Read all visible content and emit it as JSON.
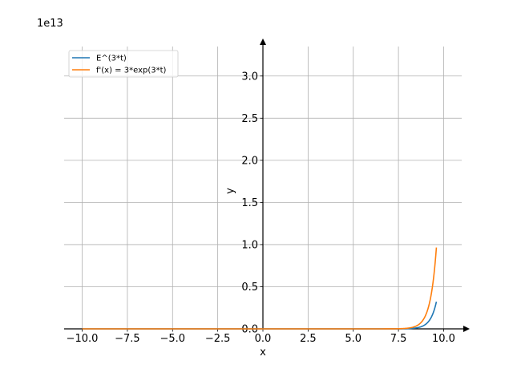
{
  "chart_data": {
    "type": "line",
    "xlabel": "x",
    "ylabel": "y",
    "y_offset_label": "1e13",
    "xlim": [
      -11,
      11
    ],
    "ylim": [
      0,
      3.35
    ],
    "y_scale_factor": 10000000000000.0,
    "x_ticks": [
      -10.0,
      -7.5,
      -5.0,
      -2.5,
      0.0,
      2.5,
      5.0,
      7.5,
      10.0
    ],
    "x_tick_labels": [
      "−10.0",
      "−7.5",
      "−5.0",
      "−2.5",
      "0.0",
      "2.5",
      "5.0",
      "7.5",
      "10.0"
    ],
    "y_ticks": [
      0.0,
      0.5,
      1.0,
      1.5,
      2.0,
      2.5,
      3.0
    ],
    "y_tick_labels": [
      "0.0",
      "0.5",
      "1.0",
      "1.5",
      "2.0",
      "2.5",
      "3.0"
    ],
    "grid": true,
    "legend_position": "top-left",
    "x_range_plotted": [
      -10,
      9.6
    ],
    "series": [
      {
        "name": "E^(3*t)",
        "function": "exp(3*t)",
        "multiplier": 1,
        "color": "#1f77b4"
      },
      {
        "name": "f'(x) = 3*exp(3*t)",
        "function": "3*exp(3*t)",
        "multiplier": 3,
        "color": "#ff7f0e"
      }
    ]
  }
}
